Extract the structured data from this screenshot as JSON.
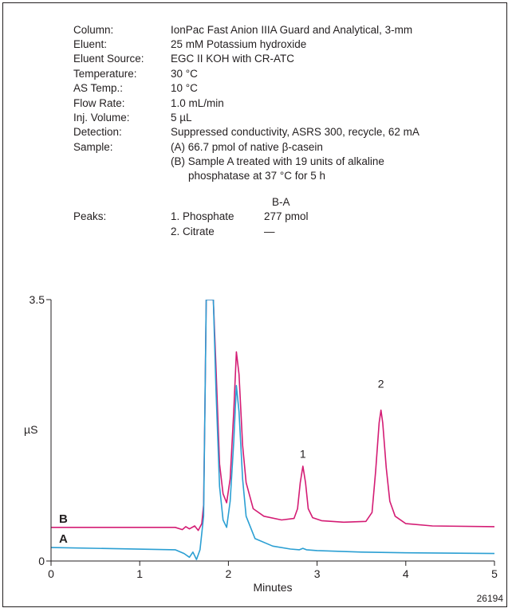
{
  "conditions": [
    {
      "label": "Column:",
      "value": "IonPac Fast Anion IIIA Guard and Analytical, 3-mm"
    },
    {
      "label": "Eluent:",
      "value": "25 mM Potassium hydroxide"
    },
    {
      "label": "Eluent Source:",
      "value": "EGC II KOH with CR-ATC"
    },
    {
      "label": "Temperature:",
      "value": "30 °C"
    },
    {
      "label": "AS Temp.:",
      "value": "10 °C"
    },
    {
      "label": "Flow Rate:",
      "value": "1.0 mL/min"
    },
    {
      "label": "Inj. Volume:",
      "value": "5 µL"
    },
    {
      "label": "Detection:",
      "value": "Suppressed conductivity, ASRS 300, recycle, 62 mA"
    },
    {
      "label": "Sample:",
      "value": "(A) 66.7 pmol of native β-casein"
    }
  ],
  "sample_b_line1": "(B) Sample A treated with 19 units of alkaline",
  "sample_b_line2": "phosphatase at 37 °C for 5 h",
  "peaks": {
    "label": "Peaks:",
    "column_header": "B-A",
    "rows": [
      {
        "name": "1. Phosphate",
        "amount": "277 pmol"
      },
      {
        "name": "2. Citrate",
        "amount": "—"
      }
    ]
  },
  "figure_number": "26194",
  "colors": {
    "trace_a": "#2b9fd3",
    "trace_b": "#d41c74",
    "axis": "#231f20"
  },
  "chart_data": {
    "type": "line",
    "xlabel": "Minutes",
    "ylabel": "µS",
    "xlim": [
      0,
      5
    ],
    "ylim": [
      0,
      3.5
    ],
    "x_ticks": [
      0,
      1,
      2,
      3,
      4,
      5
    ],
    "y_ticks": [
      {
        "value": 0,
        "label": "0"
      },
      {
        "value": 3.5,
        "label": "3.5"
      }
    ],
    "peak_labels": [
      {
        "text": "1",
        "x": 2.84,
        "y": 1.38
      },
      {
        "text": "2",
        "x": 3.72,
        "y": 2.32
      }
    ],
    "series": [
      {
        "name": "B",
        "color_key": "trace_b",
        "x": [
          0,
          1.4,
          1.48,
          1.52,
          1.56,
          1.62,
          1.66,
          1.7,
          1.72,
          1.735,
          1.75,
          1.8,
          1.83,
          1.86,
          1.9,
          1.94,
          1.98,
          2.02,
          2.06,
          2.09,
          2.12,
          2.16,
          2.2,
          2.28,
          2.4,
          2.6,
          2.74,
          2.78,
          2.81,
          2.84,
          2.87,
          2.9,
          2.95,
          3.05,
          3.3,
          3.55,
          3.62,
          3.66,
          3.7,
          3.72,
          3.74,
          3.78,
          3.82,
          3.88,
          4.0,
          4.3,
          5.0
        ],
        "y": [
          0.45,
          0.45,
          0.42,
          0.46,
          0.43,
          0.47,
          0.41,
          0.5,
          0.75,
          2.0,
          3.5,
          3.5,
          3.5,
          2.6,
          1.3,
          0.9,
          0.78,
          1.1,
          2.0,
          2.8,
          2.5,
          1.55,
          1.05,
          0.7,
          0.6,
          0.55,
          0.57,
          0.7,
          1.05,
          1.27,
          1.05,
          0.7,
          0.58,
          0.54,
          0.52,
          0.53,
          0.65,
          1.2,
          1.85,
          2.02,
          1.85,
          1.25,
          0.8,
          0.6,
          0.5,
          0.47,
          0.46
        ]
      },
      {
        "name": "A",
        "color_key": "trace_a",
        "x": [
          0,
          1.4,
          1.5,
          1.56,
          1.6,
          1.64,
          1.68,
          1.72,
          1.735,
          1.75,
          1.8,
          1.83,
          1.86,
          1.9,
          1.94,
          1.98,
          2.02,
          2.06,
          2.09,
          2.12,
          2.16,
          2.2,
          2.3,
          2.5,
          2.7,
          2.8,
          2.84,
          2.88,
          3.0,
          3.5,
          4.0,
          5.0
        ],
        "y": [
          0.18,
          0.15,
          0.1,
          0.05,
          0.12,
          0.02,
          0.15,
          0.6,
          2.0,
          3.5,
          3.5,
          3.5,
          2.3,
          1.0,
          0.55,
          0.45,
          0.8,
          1.6,
          2.35,
          2.0,
          1.1,
          0.6,
          0.3,
          0.2,
          0.16,
          0.15,
          0.17,
          0.15,
          0.14,
          0.12,
          0.11,
          0.1
        ]
      }
    ]
  }
}
